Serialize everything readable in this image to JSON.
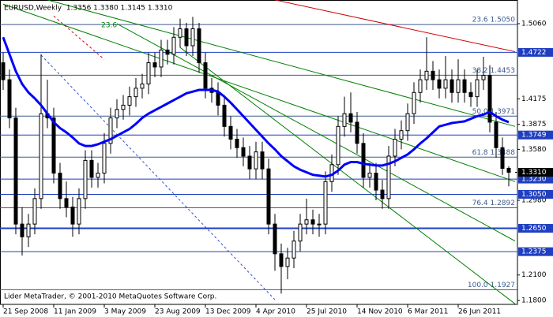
{
  "chart_data": {
    "type": "candlestick",
    "title": "EURUSD,Weekly  1.3356 1.3380 1.3145 1.3310",
    "footer": "Lider MetaTrader, © 2001-2010 MetaQuotes Software Corp.",
    "annotation": "23.6",
    "categories": [
      "21 Sep 2008",
      null,
      null,
      null,
      null,
      null,
      null,
      null,
      "11 Jan 2009",
      null,
      null,
      null,
      null,
      null,
      null,
      null,
      "3 May 2009",
      null,
      null,
      null,
      null,
      null,
      null,
      null,
      "23 Aug 2009",
      null,
      null,
      null,
      null,
      null,
      null,
      null,
      "13 Dec 2009",
      null,
      null,
      null,
      null,
      null,
      null,
      null,
      "4 Apr 2010",
      null,
      null,
      null,
      null,
      null,
      null,
      null,
      "25 Jul 2010",
      null,
      null,
      null,
      null,
      null,
      null,
      null,
      "14 Nov 2010",
      null,
      null,
      null,
      null,
      null,
      null,
      null,
      "6 Mar 2011",
      null,
      null,
      null,
      null,
      null,
      null,
      null,
      "26 Jun 2011",
      null,
      null,
      null,
      null,
      null,
      null,
      null,
      null
    ],
    "ohlc": [
      [
        1.46,
        1.472,
        1.428,
        1.44
      ],
      [
        1.44,
        1.452,
        1.383,
        1.395
      ],
      [
        1.395,
        1.407,
        1.258,
        1.27
      ],
      [
        1.27,
        1.29,
        1.233,
        1.255
      ],
      [
        1.255,
        1.282,
        1.243,
        1.27
      ],
      [
        1.27,
        1.312,
        1.258,
        1.3
      ],
      [
        1.3,
        1.47,
        1.288,
        1.4
      ],
      [
        1.4,
        1.44,
        1.383,
        1.395
      ],
      [
        1.395,
        1.407,
        1.318,
        1.33
      ],
      [
        1.33,
        1.342,
        1.288,
        1.3
      ],
      [
        1.3,
        1.32,
        1.278,
        1.29
      ],
      [
        1.29,
        1.302,
        1.255,
        1.27
      ],
      [
        1.27,
        1.312,
        1.258,
        1.3
      ],
      [
        1.3,
        1.357,
        1.288,
        1.345
      ],
      [
        1.345,
        1.357,
        1.313,
        1.325
      ],
      [
        1.325,
        1.342,
        1.313,
        1.33
      ],
      [
        1.33,
        1.377,
        1.318,
        1.365
      ],
      [
        1.365,
        1.407,
        1.353,
        1.395
      ],
      [
        1.395,
        1.417,
        1.383,
        1.405
      ],
      [
        1.405,
        1.422,
        1.393,
        1.41
      ],
      [
        1.41,
        1.432,
        1.398,
        1.42
      ],
      [
        1.42,
        1.442,
        1.408,
        1.43
      ],
      [
        1.43,
        1.447,
        1.418,
        1.435
      ],
      [
        1.435,
        1.472,
        1.423,
        1.46
      ],
      [
        1.46,
        1.472,
        1.443,
        1.455
      ],
      [
        1.455,
        1.487,
        1.443,
        1.475
      ],
      [
        1.475,
        1.487,
        1.458,
        1.47
      ],
      [
        1.47,
        1.502,
        1.458,
        1.49
      ],
      [
        1.49,
        1.512,
        1.478,
        1.5
      ],
      [
        1.5,
        1.507,
        1.468,
        1.48
      ],
      [
        1.48,
        1.514,
        1.468,
        1.5
      ],
      [
        1.5,
        1.507,
        1.448,
        1.46
      ],
      [
        1.46,
        1.472,
        1.418,
        1.43
      ],
      [
        1.43,
        1.442,
        1.413,
        1.425
      ],
      [
        1.425,
        1.437,
        1.398,
        1.41
      ],
      [
        1.41,
        1.422,
        1.373,
        1.385
      ],
      [
        1.385,
        1.397,
        1.358,
        1.37
      ],
      [
        1.37,
        1.382,
        1.348,
        1.36
      ],
      [
        1.36,
        1.372,
        1.338,
        1.35
      ],
      [
        1.35,
        1.362,
        1.323,
        1.335
      ],
      [
        1.335,
        1.367,
        1.323,
        1.355
      ],
      [
        1.355,
        1.367,
        1.323,
        1.335
      ],
      [
        1.335,
        1.347,
        1.258,
        1.27
      ],
      [
        1.27,
        1.282,
        1.215,
        1.235
      ],
      [
        1.235,
        1.247,
        1.188,
        1.22
      ],
      [
        1.22,
        1.242,
        1.205,
        1.23
      ],
      [
        1.23,
        1.262,
        1.218,
        1.25
      ],
      [
        1.25,
        1.282,
        1.238,
        1.27
      ],
      [
        1.27,
        1.3,
        1.258,
        1.275
      ],
      [
        1.275,
        1.287,
        1.258,
        1.27
      ],
      [
        1.27,
        1.282,
        1.255,
        1.27
      ],
      [
        1.27,
        1.332,
        1.258,
        1.32
      ],
      [
        1.32,
        1.352,
        1.308,
        1.34
      ],
      [
        1.34,
        1.397,
        1.328,
        1.385
      ],
      [
        1.385,
        1.42,
        1.373,
        1.4
      ],
      [
        1.4,
        1.425,
        1.378,
        1.39
      ],
      [
        1.39,
        1.402,
        1.353,
        1.365
      ],
      [
        1.365,
        1.377,
        1.313,
        1.325
      ],
      [
        1.325,
        1.342,
        1.313,
        1.33
      ],
      [
        1.33,
        1.342,
        1.298,
        1.31
      ],
      [
        1.31,
        1.322,
        1.288,
        1.3
      ],
      [
        1.3,
        1.362,
        1.288,
        1.35
      ],
      [
        1.35,
        1.382,
        1.338,
        1.37
      ],
      [
        1.37,
        1.392,
        1.358,
        1.38
      ],
      [
        1.38,
        1.412,
        1.368,
        1.4
      ],
      [
        1.4,
        1.437,
        1.388,
        1.425
      ],
      [
        1.425,
        1.452,
        1.413,
        1.44
      ],
      [
        1.44,
        1.49,
        1.428,
        1.45
      ],
      [
        1.45,
        1.462,
        1.428,
        1.44
      ],
      [
        1.44,
        1.452,
        1.418,
        1.43
      ],
      [
        1.43,
        1.468,
        1.418,
        1.44
      ],
      [
        1.44,
        1.452,
        1.413,
        1.425
      ],
      [
        1.425,
        1.464,
        1.413,
        1.44
      ],
      [
        1.44,
        1.452,
        1.413,
        1.425
      ],
      [
        1.425,
        1.437,
        1.408,
        1.42
      ],
      [
        1.42,
        1.452,
        1.408,
        1.44
      ],
      [
        1.44,
        1.467,
        1.428,
        1.445
      ],
      [
        1.445,
        1.457,
        1.378,
        1.39
      ],
      [
        1.39,
        1.402,
        1.348,
        1.36
      ],
      [
        1.36,
        1.372,
        1.328,
        1.3356
      ],
      [
        1.3356,
        1.338,
        1.3145,
        1.331
      ]
    ],
    "ma": {
      "color": "#0000ff",
      "values": [
        1.49,
        1.47,
        1.45,
        1.435,
        1.425,
        1.418,
        1.41,
        1.4,
        1.39,
        1.383,
        1.378,
        1.372,
        1.365,
        1.362,
        1.362,
        1.364,
        1.367,
        1.37,
        1.374,
        1.378,
        1.382,
        1.388,
        1.395,
        1.4,
        1.404,
        1.408,
        1.412,
        1.416,
        1.42,
        1.424,
        1.426,
        1.428,
        1.428,
        1.428,
        1.426,
        1.42,
        1.413,
        1.405,
        1.397,
        1.389,
        1.381,
        1.373,
        1.365,
        1.358,
        1.35,
        1.344,
        1.338,
        1.334,
        1.331,
        1.328,
        1.327,
        1.326,
        1.328,
        1.333,
        1.34,
        1.343,
        1.343,
        1.341,
        1.34,
        1.339,
        1.339,
        1.341,
        1.344,
        1.348,
        1.352,
        1.358,
        1.365,
        1.371,
        1.378,
        1.385,
        1.387,
        1.389,
        1.39,
        1.391,
        1.394,
        1.397,
        1.399,
        1.402,
        1.397,
        1.393,
        1.39
      ]
    },
    "ylim": [
      1.1754,
      1.5339
    ],
    "yticks": [
      {
        "value": 1.506,
        "label": "1.5060"
      },
      1.4175,
      1.3875,
      {
        "value": 1.358,
        "label": "1.3580"
      },
      {
        "value": 1.298,
        "label": "1.2980"
      },
      {
        "value": 1.21,
        "label": "1.2100"
      },
      {
        "value": 1.18,
        "label": "1.1800"
      }
    ],
    "levels": [
      {
        "value": 1.505,
        "label": "23.6 1.5050"
      },
      {
        "value": 1.4453,
        "label": "38.2 1.4453"
      },
      {
        "value": 1.3971,
        "label": "50.0 1.3971"
      },
      {
        "value": 1.3488,
        "label": "61.8 1.3488"
      },
      {
        "value": 1.2892,
        "label": "76.4 1.2892"
      },
      {
        "value": 1.1927,
        "label": "100.0 1.1927"
      }
    ],
    "level_color": "#3c5a8c",
    "hlines": [
      {
        "value": 1.4722,
        "label": "1.4722",
        "width": 1
      },
      {
        "value": 1.3749,
        "label": "1.3749",
        "width": 1
      },
      {
        "value": 1.323,
        "label": "1.3230",
        "width": 1
      },
      {
        "value": 1.305,
        "label": "1.3050",
        "width": 1
      },
      {
        "value": 1.265,
        "label": "1.2650",
        "width": 2
      },
      {
        "value": 1.2375,
        "label": "1.2375",
        "width": 1
      }
    ],
    "hline_color": "#1f3fc0",
    "current": {
      "value": 1.331,
      "label": "1.3310"
    },
    "trendlines": [
      {
        "color": "#d00000",
        "dash": false,
        "from": [
          43,
          1.534
        ],
        "to": [
          81,
          1.473
        ]
      },
      {
        "color": "#008000",
        "dash": false,
        "from": [
          7,
          1.534
        ],
        "to": [
          81,
          1.385
        ]
      },
      {
        "color": "#008000",
        "dash": false,
        "from": [
          0,
          1.529
        ],
        "to": [
          81,
          1.32
        ]
      },
      {
        "color": "#008000",
        "dash": false,
        "from": [
          18,
          1.506
        ],
        "to": [
          81,
          1.25
        ]
      },
      {
        "color": "#008000",
        "dash": false,
        "from": [
          28,
          1.478
        ],
        "to": [
          81,
          1.176
        ]
      },
      {
        "color": "#3050d0",
        "dash": true,
        "from": [
          6,
          1.469
        ],
        "to": [
          43,
          1.181
        ]
      },
      {
        "color": "#d00000",
        "dash": true,
        "from": [
          8,
          1.515
        ],
        "to": [
          16,
          1.464
        ]
      }
    ]
  }
}
